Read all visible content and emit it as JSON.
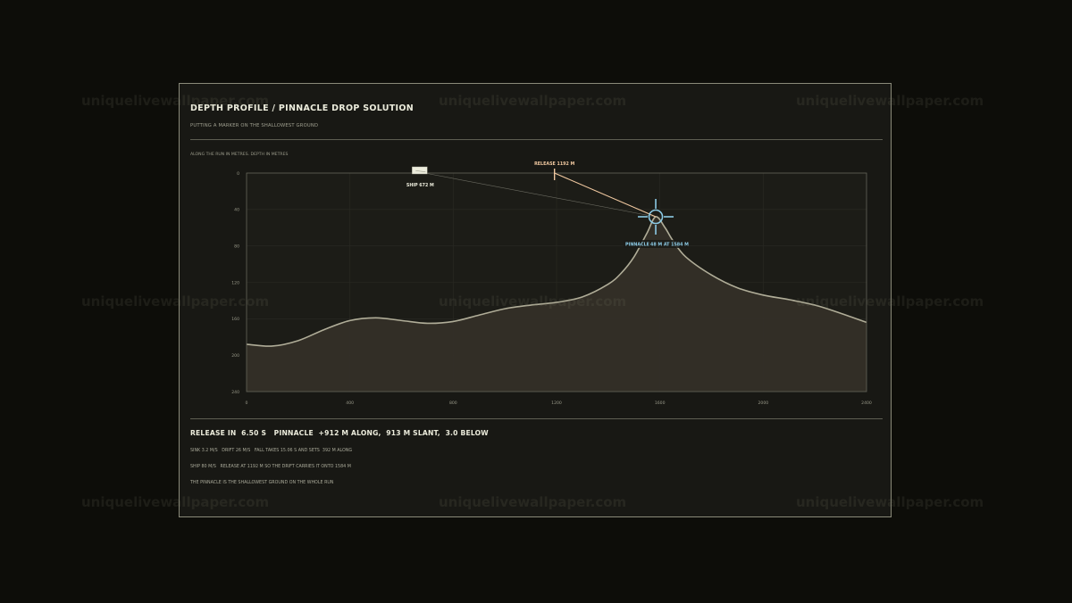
{
  "header": {
    "title": "DEPTH PROFILE / PINNACLE DROP SOLUTION",
    "subtitle": "PUTTING A MARKER ON THE SHALLOWEST GROUND"
  },
  "chart_caption": "ALONG THE RUN IN METRES. DEPTH IN METRES",
  "chart_data": {
    "type": "area",
    "x": [
      0,
      100,
      200,
      300,
      400,
      500,
      600,
      700,
      800,
      900,
      1000,
      1100,
      1200,
      1300,
      1400,
      1450,
      1500,
      1550,
      1584,
      1620,
      1650,
      1700,
      1800,
      1900,
      2000,
      2100,
      2200,
      2300,
      2400
    ],
    "y": [
      188,
      190,
      184,
      172,
      162,
      159,
      162,
      165,
      163,
      156,
      149,
      145,
      142,
      136,
      122,
      110,
      92,
      66,
      48,
      60,
      74,
      92,
      112,
      126,
      134,
      139,
      145,
      154,
      164
    ],
    "xlim": [
      0,
      2400
    ],
    "ylim": [
      0,
      240
    ],
    "y_inverted": true,
    "xticks": [
      "0",
      "400",
      "800",
      "1200",
      "1600",
      "2000",
      "2400"
    ],
    "yticks": [
      "0",
      "40",
      "80",
      "120",
      "160",
      "200",
      "240"
    ],
    "grid": true,
    "colors": {
      "terrain_fill": "#343028",
      "terrain_line": "#b0ad98",
      "release_line": "#f0c8a0",
      "target": "#8ccbe6",
      "sight_line": "#6a6a60"
    },
    "ship": {
      "along": 672,
      "depth": 0,
      "label": "SHIP 672 M"
    },
    "release": {
      "along": 1192,
      "depth": 0,
      "label": "RELEASE 1192 M"
    },
    "pinnacle": {
      "along": 1584,
      "depth": 48,
      "label_name": "PINNACLE",
      "label_value": "48 M AT 1584 M"
    }
  },
  "result": {
    "headline": "RELEASE IN  6.50 S   PINNACLE  +912 M ALONG,  913 M SLANT,  3.0 BELOW",
    "line1": "SINK 3.2 M/S   DRIFT 26 M/S   FALL TAKES 15.06 S AND SETS  392 M ALONG",
    "line2": "SHIP 80 M/S   RELEASE AT 1192 M SO THE DRIFT CARRIES IT ONTO 1584 M",
    "line3": "THE PINNACLE IS THE SHALLOWEST GROUND ON THE WHOLE RUN"
  },
  "watermark": "uniquelivewallpaper.com"
}
